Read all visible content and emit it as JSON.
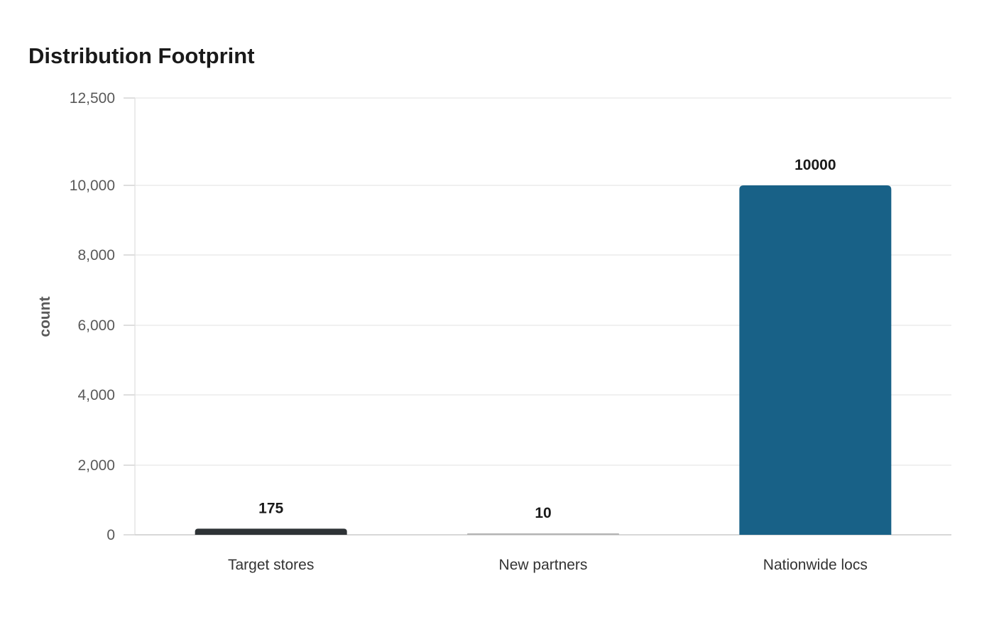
{
  "chart_data": {
    "type": "bar",
    "title": "Distribution Footprint",
    "xlabel": "",
    "ylabel": "count",
    "categories": [
      "Target stores",
      "New partners",
      "Nationwide locs"
    ],
    "values": [
      175,
      10,
      10000
    ],
    "data_labels": [
      "175",
      "10",
      "10000"
    ],
    "bar_colors": [
      "#2e3336",
      "#b3b3b3",
      "#186187"
    ],
    "ylim": [
      0,
      12500
    ],
    "yticks": [
      0,
      2000,
      4000,
      6000,
      8000,
      10000,
      12500
    ],
    "ytick_labels": [
      "0",
      "2,000",
      "4,000",
      "6,000",
      "8,000",
      "10,000",
      "12,500"
    ],
    "grid": true,
    "legend": "none"
  }
}
